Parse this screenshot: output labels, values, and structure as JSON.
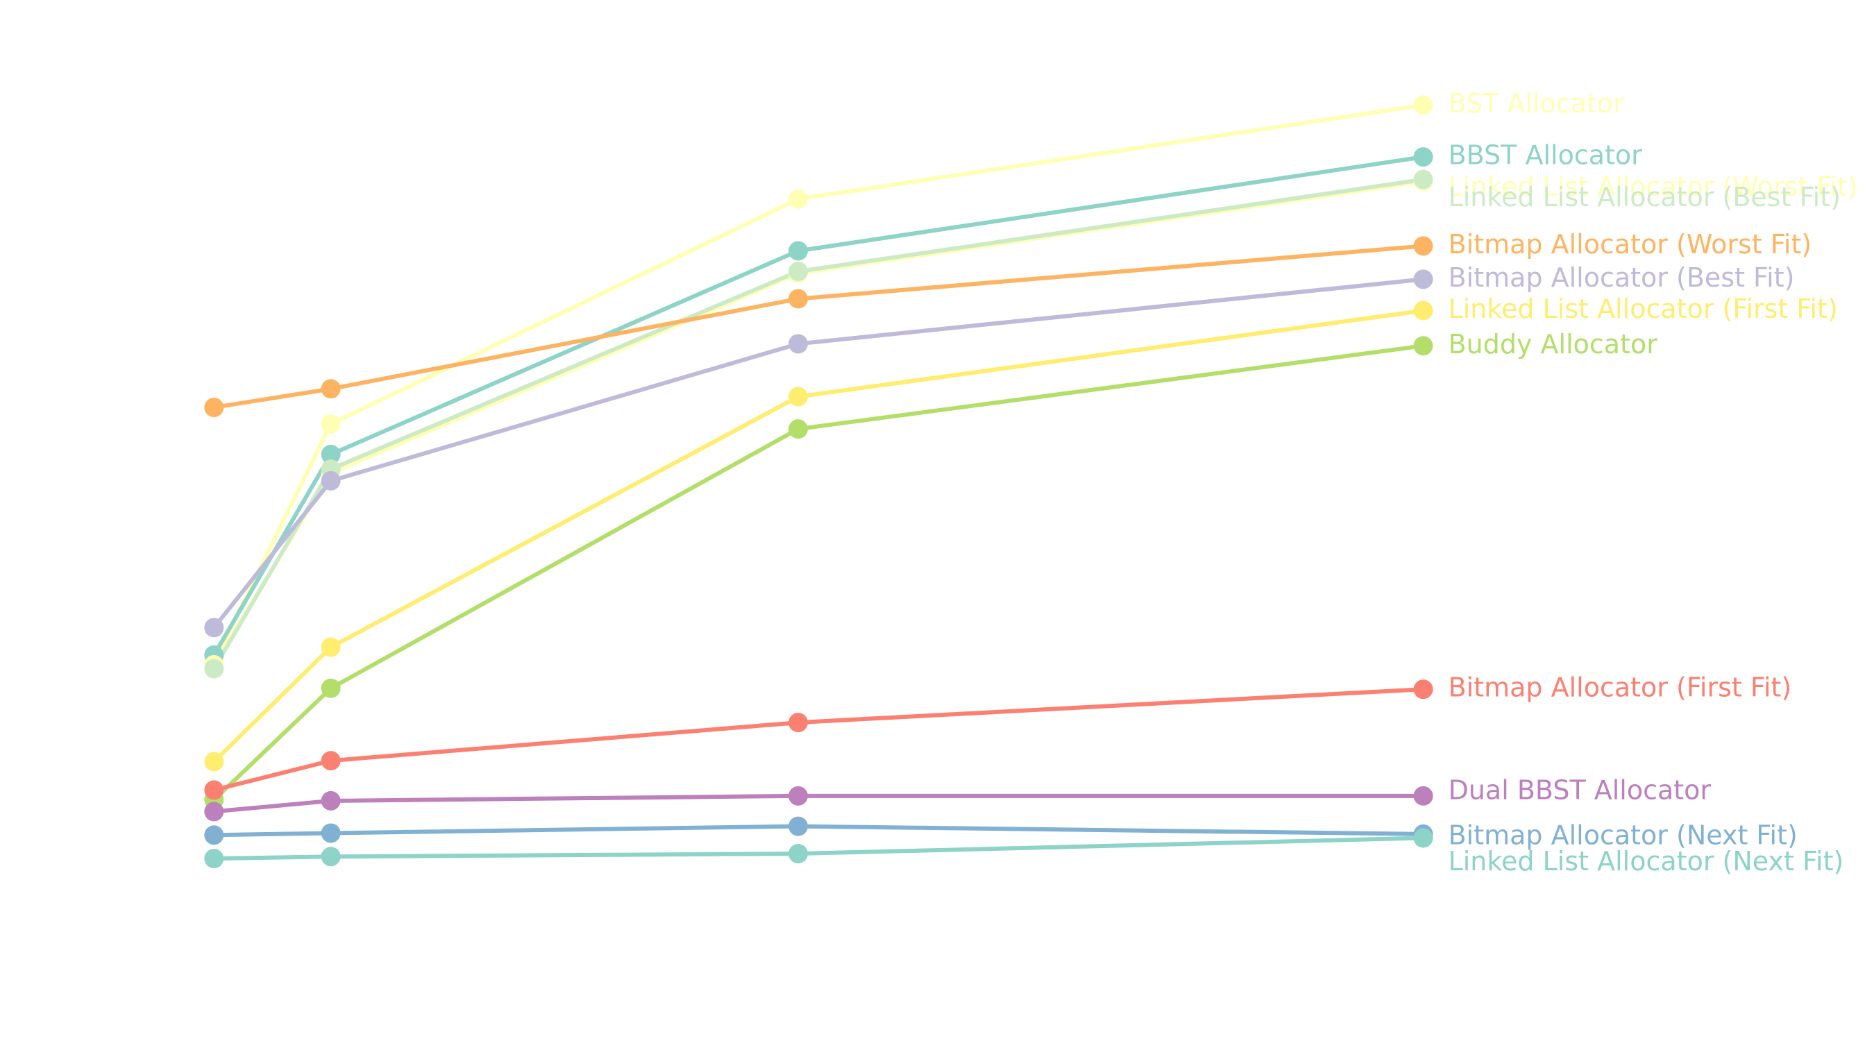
{
  "chart_data": {
    "type": "line",
    "title": "",
    "xlabel": "",
    "ylabel": "",
    "grid": false,
    "x": [
      1,
      2,
      6,
      11.35
    ],
    "xlim": [
      0,
      12
    ],
    "ylim": [
      0,
      1000
    ],
    "legend": "direct-labels-right",
    "series": [
      {
        "name": "BST Allocator",
        "color": "#FFFFB3",
        "values": [
          391,
          634,
          864,
          960
        ]
      },
      {
        "name": "BBST Allocator",
        "color": "#8DD3C7",
        "values": [
          398,
          603,
          811,
          907
        ]
      },
      {
        "name": "Linked List Allocator (Worst Fit)",
        "color": "#FFFFB3",
        "values": [
          388,
          584,
          788,
          882
        ]
      },
      {
        "name": "Linked List Allocator (Best Fit)",
        "color": "#CCEBC5",
        "values": [
          384,
          588,
          790,
          884
        ]
      },
      {
        "name": "Bitmap Allocator (Worst Fit)",
        "color": "#FDB462",
        "values": [
          651,
          670,
          762,
          816
        ]
      },
      {
        "name": "Bitmap Allocator (Best Fit)",
        "color": "#BEBADA",
        "values": [
          426,
          576,
          716,
          782
        ]
      },
      {
        "name": "Linked List Allocator (First Fit)",
        "color": "#FFED6F",
        "values": [
          289,
          406,
          662,
          750
        ]
      },
      {
        "name": "Buddy Allocator",
        "color": "#B3DE69",
        "values": [
          250,
          364,
          629,
          714
        ]
      },
      {
        "name": "Bitmap Allocator (First Fit)",
        "color": "#FB8072",
        "values": [
          260,
          290,
          329,
          363
        ]
      },
      {
        "name": "Dual BBST Allocator",
        "color": "#BC80BD",
        "values": [
          238,
          249,
          254,
          254
        ]
      },
      {
        "name": "Bitmap Allocator (Next Fit)",
        "color": "#80B1D3",
        "values": [
          214,
          216,
          223,
          215
        ]
      },
      {
        "name": "Linked List Allocator (Next Fit)",
        "color": "#8DD3C7",
        "values": [
          190,
          192,
          195,
          211
        ]
      }
    ]
  }
}
